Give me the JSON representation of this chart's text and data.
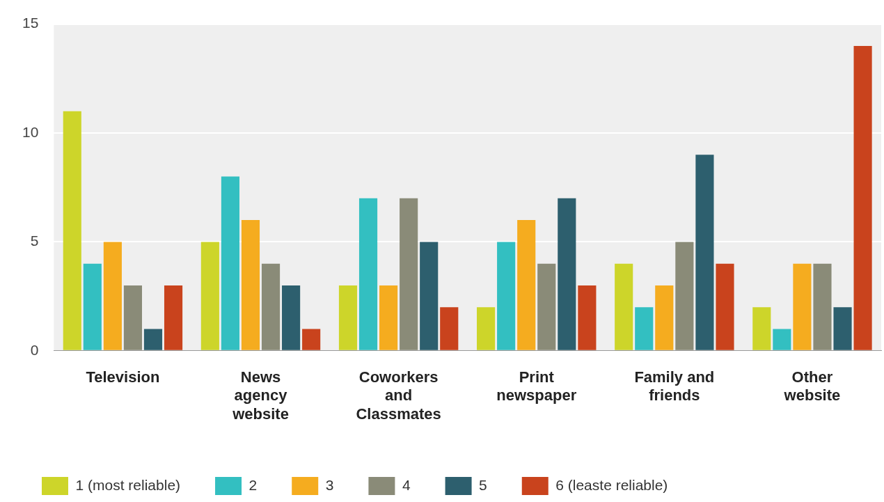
{
  "chart_data": {
    "type": "bar",
    "categories": [
      "Television",
      "News agency website",
      "Coworkers and Classmates",
      "Print newspaper",
      "Family and friends",
      "Other website"
    ],
    "series": [
      {
        "name": "1 (most reliable)",
        "color": "#cdd52a",
        "values": [
          11,
          5,
          3,
          2,
          4,
          2
        ]
      },
      {
        "name": "2",
        "color": "#33bfc1",
        "values": [
          4,
          8,
          7,
          5,
          2,
          1
        ]
      },
      {
        "name": "3",
        "color": "#f5ac1f",
        "values": [
          5,
          6,
          3,
          6,
          3,
          4
        ]
      },
      {
        "name": "4",
        "color": "#8a8b78",
        "values": [
          3,
          4,
          7,
          4,
          5,
          4
        ]
      },
      {
        "name": "5",
        "color": "#2d5f6e",
        "values": [
          1,
          3,
          5,
          7,
          9,
          2
        ]
      },
      {
        "name": "6 (leaste reliable)",
        "color": "#c9431d",
        "values": [
          3,
          1,
          2,
          3,
          4,
          14
        ]
      }
    ],
    "ylim": [
      0,
      15
    ],
    "yticks": [
      0,
      5,
      10,
      15
    ],
    "grid": "y",
    "legend": "bottom left"
  }
}
